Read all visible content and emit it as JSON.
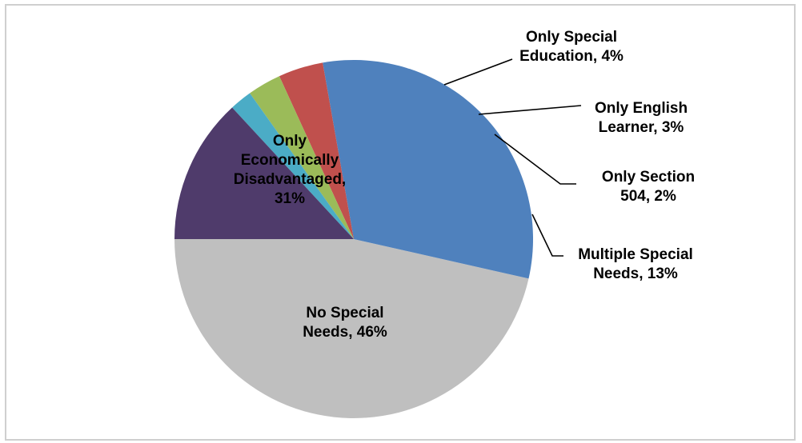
{
  "chart_data": {
    "type": "pie",
    "title": "",
    "legend": "none",
    "slices": [
      {
        "category": "No Special Needs",
        "value": 46,
        "color": "#bfbfbf",
        "label": [
          "No Special",
          "Needs, 46%"
        ]
      },
      {
        "category": "Only Economically Disadvantaged",
        "value": 31,
        "color": "#4f81bd",
        "label": [
          "Only",
          "Economically",
          "Disadvantaged,",
          "31%"
        ]
      },
      {
        "category": "Only Special Education",
        "value": 4,
        "color": "#c0504d",
        "label": [
          "Only Special",
          "Education, 4%"
        ]
      },
      {
        "category": "Only English Learner",
        "value": 3,
        "color": "#9bbb59",
        "label": [
          "Only English",
          "Learner, 3%"
        ]
      },
      {
        "category": "Only Section 504",
        "value": 2,
        "color": "#4bacc6",
        "label": [
          "Only Section",
          "504, 2%"
        ]
      },
      {
        "category": "Multiple Special Needs",
        "value": 13,
        "color": "#4f3b6b",
        "label": [
          "Multiple Special",
          "Needs, 13%"
        ]
      }
    ]
  }
}
